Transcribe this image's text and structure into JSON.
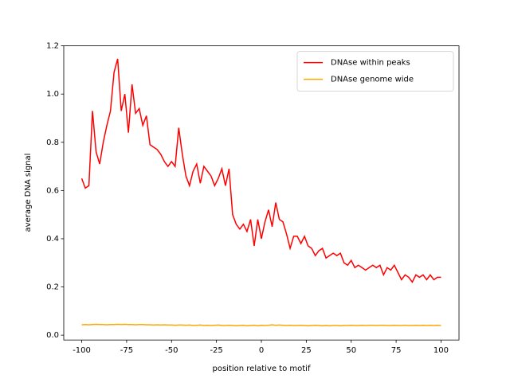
{
  "chart_data": {
    "type": "line",
    "xlabel": "position relative to motif",
    "ylabel": "average DNA signal",
    "x": [
      -100,
      -98,
      -96,
      -94,
      -92,
      -90,
      -88,
      -86,
      -84,
      -82,
      -80,
      -78,
      -76,
      -74,
      -72,
      -70,
      -68,
      -66,
      -64,
      -62,
      -60,
      -58,
      -56,
      -54,
      -52,
      -50,
      -48,
      -46,
      -44,
      -42,
      -40,
      -38,
      -36,
      -34,
      -32,
      -30,
      -28,
      -26,
      -24,
      -22,
      -20,
      -18,
      -16,
      -14,
      -12,
      -10,
      -8,
      -6,
      -4,
      -2,
      0,
      2,
      4,
      6,
      8,
      10,
      12,
      14,
      16,
      18,
      20,
      22,
      24,
      26,
      28,
      30,
      32,
      34,
      36,
      38,
      40,
      42,
      44,
      46,
      48,
      50,
      52,
      54,
      56,
      58,
      60,
      62,
      64,
      66,
      68,
      70,
      72,
      74,
      76,
      78,
      80,
      82,
      84,
      86,
      88,
      90,
      92,
      94,
      96,
      98,
      100
    ],
    "series": [
      {
        "name": "DNAse within peaks",
        "color": "#ff0000",
        "values": [
          0.65,
          0.61,
          0.62,
          0.93,
          0.76,
          0.71,
          0.8,
          0.87,
          0.93,
          1.09,
          1.146,
          0.93,
          1.0,
          0.84,
          1.04,
          0.92,
          0.94,
          0.87,
          0.91,
          0.79,
          0.78,
          0.77,
          0.75,
          0.72,
          0.7,
          0.72,
          0.7,
          0.86,
          0.75,
          0.66,
          0.62,
          0.68,
          0.71,
          0.63,
          0.7,
          0.68,
          0.66,
          0.62,
          0.65,
          0.69,
          0.62,
          0.69,
          0.5,
          0.46,
          0.44,
          0.46,
          0.43,
          0.48,
          0.37,
          0.48,
          0.4,
          0.47,
          0.52,
          0.45,
          0.55,
          0.48,
          0.47,
          0.42,
          0.36,
          0.41,
          0.41,
          0.38,
          0.41,
          0.37,
          0.36,
          0.33,
          0.35,
          0.36,
          0.32,
          0.33,
          0.34,
          0.33,
          0.34,
          0.3,
          0.29,
          0.31,
          0.28,
          0.29,
          0.28,
          0.27,
          0.28,
          0.29,
          0.28,
          0.29,
          0.25,
          0.28,
          0.27,
          0.29,
          0.26,
          0.23,
          0.25,
          0.24,
          0.22,
          0.25,
          0.24,
          0.25,
          0.23,
          0.25,
          0.23,
          0.24,
          0.24
        ]
      },
      {
        "name": "DNAse genome wide",
        "color": "#ffa500",
        "values": [
          0.043,
          0.044,
          0.043,
          0.044,
          0.045,
          0.044,
          0.044,
          0.043,
          0.044,
          0.044,
          0.045,
          0.044,
          0.045,
          0.044,
          0.044,
          0.043,
          0.044,
          0.044,
          0.043,
          0.043,
          0.042,
          0.043,
          0.042,
          0.043,
          0.042,
          0.042,
          0.041,
          0.042,
          0.042,
          0.041,
          0.042,
          0.04,
          0.041,
          0.042,
          0.04,
          0.041,
          0.04,
          0.041,
          0.042,
          0.04,
          0.04,
          0.041,
          0.04,
          0.039,
          0.04,
          0.041,
          0.039,
          0.04,
          0.041,
          0.039,
          0.041,
          0.04,
          0.041,
          0.043,
          0.041,
          0.042,
          0.041,
          0.04,
          0.041,
          0.04,
          0.04,
          0.041,
          0.04,
          0.039,
          0.04,
          0.041,
          0.04,
          0.039,
          0.04,
          0.039,
          0.04,
          0.04,
          0.039,
          0.04,
          0.04,
          0.041,
          0.04,
          0.04,
          0.041,
          0.04,
          0.041,
          0.041,
          0.04,
          0.041,
          0.041,
          0.04,
          0.04,
          0.041,
          0.04,
          0.04,
          0.041,
          0.04,
          0.04,
          0.041,
          0.04,
          0.041,
          0.04,
          0.041,
          0.04,
          0.041,
          0.04
        ]
      }
    ],
    "xlim": [
      -110,
      110
    ],
    "ylim": [
      -0.02,
      1.2
    ],
    "xticks": [
      -100,
      -75,
      -50,
      -25,
      0,
      25,
      50,
      75,
      100
    ],
    "yticks": [
      {
        "value": 0,
        "label": "0.0"
      },
      0.2,
      0.4,
      0.6,
      0.8,
      {
        "value": 1,
        "label": "1.0"
      },
      1.2
    ],
    "legend": "upper right"
  }
}
